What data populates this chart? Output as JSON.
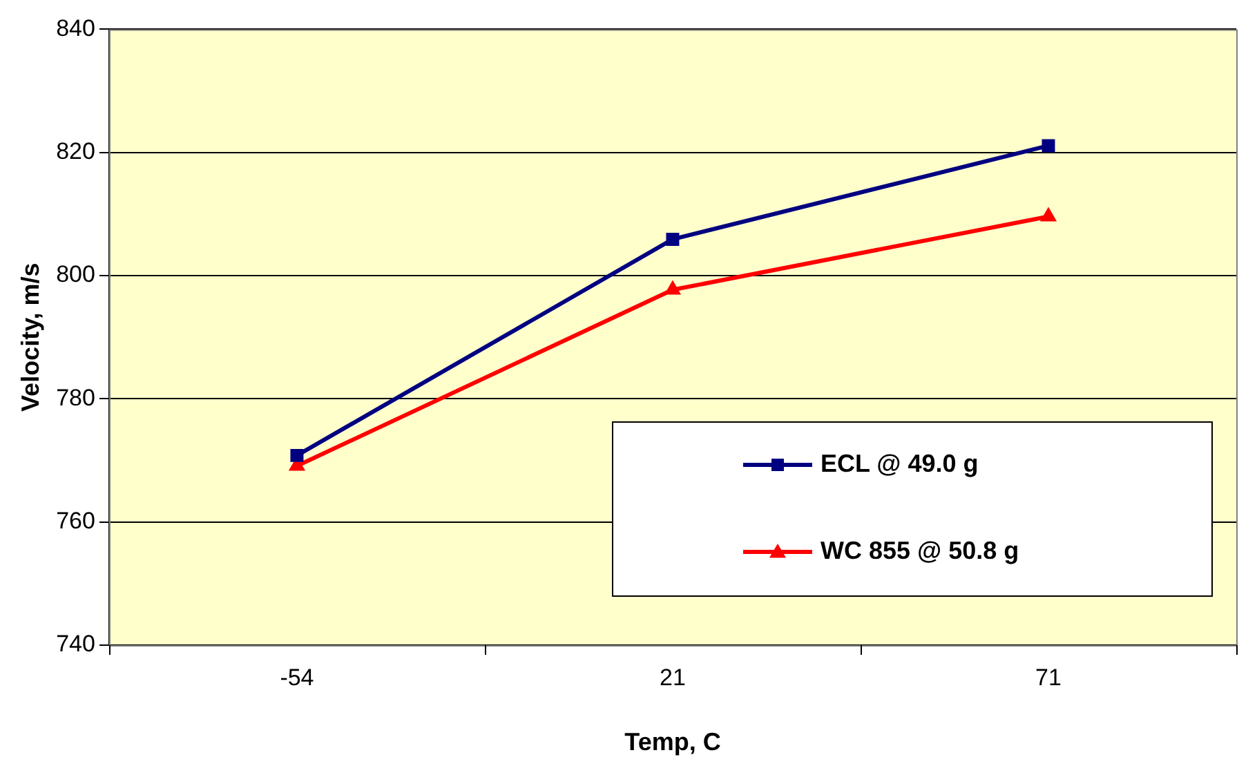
{
  "chart_data": {
    "type": "line",
    "xlabel": "Temp, C",
    "ylabel": "Velocity, m/s",
    "categories": [
      "-54",
      "21",
      "71"
    ],
    "series": [
      {
        "name": "ECL @ 49.0 g",
        "color": "#000080",
        "marker": "square",
        "values": [
          770.8,
          805.9,
          821.1
        ]
      },
      {
        "name": "WC 855 @ 50.8 g",
        "color": "#ff0000",
        "marker": "triangle",
        "values": [
          769.1,
          797.7,
          809.6
        ]
      }
    ],
    "ylim": [
      740,
      840
    ],
    "yticks": [
      740,
      760,
      780,
      800,
      820,
      840
    ],
    "grid": "y",
    "legend": "bottom right",
    "line_style": "solid"
  }
}
